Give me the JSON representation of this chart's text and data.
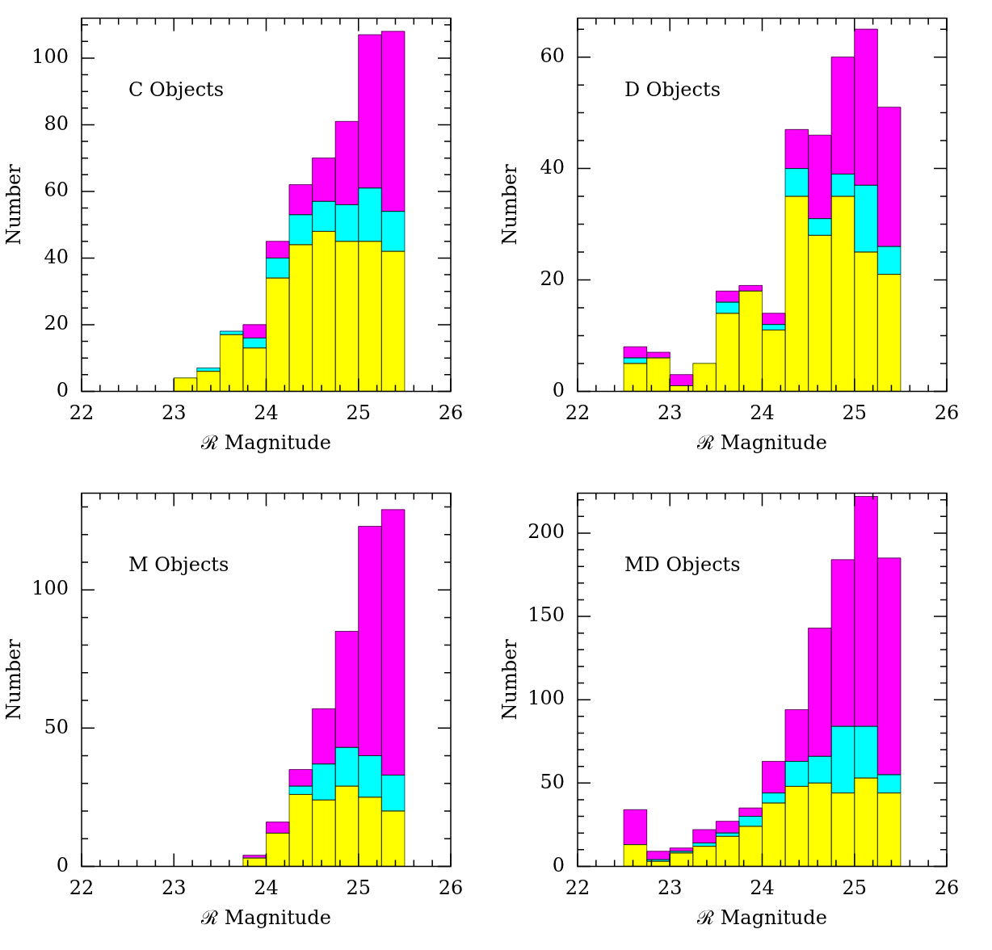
{
  "chart_data": [
    {
      "type": "bar",
      "xlabel": "ℛ Magnitude",
      "ylabel": "Number",
      "annotations": [
        "C Objects"
      ],
      "stacked": true,
      "grid": false,
      "legend": false,
      "x": [
        22.625,
        22.875,
        23.125,
        23.375,
        23.625,
        23.875,
        24.125,
        24.375,
        24.625,
        24.875,
        25.125,
        25.375
      ],
      "series": [
        {
          "color": "#ffff00",
          "values": [
            0,
            0,
            4,
            6,
            17,
            13,
            34,
            44,
            48,
            45,
            45,
            42
          ]
        },
        {
          "color": "#00ffff",
          "values": [
            0,
            0,
            0,
            1,
            1,
            3,
            6,
            9,
            9,
            11,
            16,
            12
          ]
        },
        {
          "color": "#ff00ff",
          "values": [
            0,
            0,
            0,
            0,
            0,
            4,
            5,
            9,
            13,
            25,
            46,
            54
          ]
        }
      ],
      "xlim": [
        22,
        26
      ],
      "xticks": [
        22,
        {
          "value": 22.2,
          "label": null
        },
        {
          "value": 22.4,
          "label": null
        },
        {
          "value": 22.6,
          "label": null
        },
        {
          "value": 22.8,
          "label": null
        },
        23,
        {
          "value": 23.2,
          "label": null
        },
        {
          "value": 23.4,
          "label": null
        },
        {
          "value": 23.6,
          "label": null
        },
        {
          "value": 23.8,
          "label": null
        },
        24,
        {
          "value": 24.2,
          "label": null
        },
        {
          "value": 24.4,
          "label": null
        },
        {
          "value": 24.6,
          "label": null
        },
        {
          "value": 24.8,
          "label": null
        },
        25,
        {
          "value": 25.2,
          "label": null
        },
        {
          "value": 25.4,
          "label": null
        },
        {
          "value": 25.6,
          "label": null
        },
        {
          "value": 25.8,
          "label": null
        },
        26
      ],
      "ylim": [
        0,
        112
      ],
      "yticks": [
        0,
        {
          "value": 5,
          "label": null
        },
        {
          "value": 10,
          "label": null
        },
        {
          "value": 15,
          "label": null
        },
        20,
        {
          "value": 25,
          "label": null
        },
        {
          "value": 30,
          "label": null
        },
        {
          "value": 35,
          "label": null
        },
        40,
        {
          "value": 45,
          "label": null
        },
        {
          "value": 50,
          "label": null
        },
        {
          "value": 55,
          "label": null
        },
        60,
        {
          "value": 65,
          "label": null
        },
        {
          "value": 70,
          "label": null
        },
        {
          "value": 75,
          "label": null
        },
        80,
        {
          "value": 85,
          "label": null
        },
        {
          "value": 90,
          "label": null
        },
        {
          "value": 95,
          "label": null
        },
        100,
        {
          "value": 105,
          "label": null
        },
        {
          "value": 110,
          "label": null
        }
      ]
    },
    {
      "type": "bar",
      "xlabel": "ℛ Magnitude",
      "ylabel": "Number",
      "annotations": [
        "D Objects"
      ],
      "stacked": true,
      "grid": false,
      "legend": false,
      "x": [
        22.625,
        22.875,
        23.125,
        23.375,
        23.625,
        23.875,
        24.125,
        24.375,
        24.625,
        24.875,
        25.125,
        25.375
      ],
      "series": [
        {
          "color": "#ffff00",
          "values": [
            5,
            6,
            1,
            5,
            14,
            18,
            11,
            35,
            28,
            35,
            25,
            21
          ]
        },
        {
          "color": "#00ffff",
          "values": [
            1,
            0,
            0,
            0,
            2,
            0,
            1,
            5,
            3,
            4,
            12,
            5
          ]
        },
        {
          "color": "#ff00ff",
          "values": [
            2,
            1,
            2,
            0,
            2,
            1,
            2,
            7,
            15,
            21,
            28,
            25
          ]
        }
      ],
      "xlim": [
        22,
        26
      ],
      "xticks": [
        22,
        {
          "value": 22.2,
          "label": null
        },
        {
          "value": 22.4,
          "label": null
        },
        {
          "value": 22.6,
          "label": null
        },
        {
          "value": 22.8,
          "label": null
        },
        23,
        {
          "value": 23.2,
          "label": null
        },
        {
          "value": 23.4,
          "label": null
        },
        {
          "value": 23.6,
          "label": null
        },
        {
          "value": 23.8,
          "label": null
        },
        24,
        {
          "value": 24.2,
          "label": null
        },
        {
          "value": 24.4,
          "label": null
        },
        {
          "value": 24.6,
          "label": null
        },
        {
          "value": 24.8,
          "label": null
        },
        25,
        {
          "value": 25.2,
          "label": null
        },
        {
          "value": 25.4,
          "label": null
        },
        {
          "value": 25.6,
          "label": null
        },
        {
          "value": 25.8,
          "label": null
        },
        26
      ],
      "ylim": [
        0,
        67
      ],
      "yticks": [
        0,
        {
          "value": 5,
          "label": null
        },
        {
          "value": 10,
          "label": null
        },
        {
          "value": 15,
          "label": null
        },
        20,
        {
          "value": 25,
          "label": null
        },
        {
          "value": 30,
          "label": null
        },
        {
          "value": 35,
          "label": null
        },
        40,
        {
          "value": 45,
          "label": null
        },
        {
          "value": 50,
          "label": null
        },
        {
          "value": 55,
          "label": null
        },
        60,
        {
          "value": 65,
          "label": null
        }
      ]
    },
    {
      "type": "bar",
      "xlabel": "ℛ Magnitude",
      "ylabel": "Number",
      "annotations": [
        "M Objects"
      ],
      "stacked": true,
      "grid": false,
      "legend": false,
      "x": [
        22.625,
        22.875,
        23.125,
        23.375,
        23.625,
        23.875,
        24.125,
        24.375,
        24.625,
        24.875,
        25.125,
        25.375
      ],
      "series": [
        {
          "color": "#ffff00",
          "values": [
            0,
            0,
            0,
            0,
            0,
            3,
            12,
            26,
            24,
            29,
            25,
            20
          ]
        },
        {
          "color": "#00ffff",
          "values": [
            0,
            0,
            0,
            0,
            0,
            0,
            0,
            3,
            13,
            14,
            15,
            13
          ]
        },
        {
          "color": "#ff00ff",
          "values": [
            0,
            0,
            0,
            0,
            0,
            1,
            4,
            6,
            20,
            42,
            83,
            96
          ]
        }
      ],
      "xlim": [
        22,
        26
      ],
      "xticks": [
        22,
        {
          "value": 22.2,
          "label": null
        },
        {
          "value": 22.4,
          "label": null
        },
        {
          "value": 22.6,
          "label": null
        },
        {
          "value": 22.8,
          "label": null
        },
        23,
        {
          "value": 23.2,
          "label": null
        },
        {
          "value": 23.4,
          "label": null
        },
        {
          "value": 23.6,
          "label": null
        },
        {
          "value": 23.8,
          "label": null
        },
        24,
        {
          "value": 24.2,
          "label": null
        },
        {
          "value": 24.4,
          "label": null
        },
        {
          "value": 24.6,
          "label": null
        },
        {
          "value": 24.8,
          "label": null
        },
        25,
        {
          "value": 25.2,
          "label": null
        },
        {
          "value": 25.4,
          "label": null
        },
        {
          "value": 25.6,
          "label": null
        },
        {
          "value": 25.8,
          "label": null
        },
        26
      ],
      "ylim": [
        0,
        135
      ],
      "yticks": [
        0,
        {
          "value": 10,
          "label": null
        },
        {
          "value": 20,
          "label": null
        },
        {
          "value": 30,
          "label": null
        },
        {
          "value": 40,
          "label": null
        },
        50,
        {
          "value": 60,
          "label": null
        },
        {
          "value": 70,
          "label": null
        },
        {
          "value": 80,
          "label": null
        },
        {
          "value": 90,
          "label": null
        },
        100,
        {
          "value": 110,
          "label": null
        },
        {
          "value": 120,
          "label": null
        },
        {
          "value": 130,
          "label": null
        }
      ]
    },
    {
      "type": "bar",
      "xlabel": "ℛ Magnitude",
      "ylabel": "Number",
      "annotations": [
        "MD Objects"
      ],
      "stacked": true,
      "grid": false,
      "legend": false,
      "x": [
        22.625,
        22.875,
        23.125,
        23.375,
        23.625,
        23.875,
        24.125,
        24.375,
        24.625,
        24.875,
        25.125,
        25.375
      ],
      "series": [
        {
          "color": "#ffff00",
          "values": [
            13,
            3,
            8,
            12,
            18,
            24,
            38,
            48,
            50,
            44,
            53,
            44
          ]
        },
        {
          "color": "#00ffff",
          "values": [
            0,
            1,
            1,
            2,
            2,
            6,
            6,
            15,
            16,
            40,
            31,
            11
          ]
        },
        {
          "color": "#ff00ff",
          "values": [
            21,
            5,
            2,
            8,
            7,
            5,
            19,
            31,
            77,
            100,
            138,
            130
          ]
        }
      ],
      "xlim": [
        22,
        26
      ],
      "xticks": [
        22,
        {
          "value": 22.2,
          "label": null
        },
        {
          "value": 22.4,
          "label": null
        },
        {
          "value": 22.6,
          "label": null
        },
        {
          "value": 22.8,
          "label": null
        },
        23,
        {
          "value": 23.2,
          "label": null
        },
        {
          "value": 23.4,
          "label": null
        },
        {
          "value": 23.6,
          "label": null
        },
        {
          "value": 23.8,
          "label": null
        },
        24,
        {
          "value": 24.2,
          "label": null
        },
        {
          "value": 24.4,
          "label": null
        },
        {
          "value": 24.6,
          "label": null
        },
        {
          "value": 24.8,
          "label": null
        },
        25,
        {
          "value": 25.2,
          "label": null
        },
        {
          "value": 25.4,
          "label": null
        },
        {
          "value": 25.6,
          "label": null
        },
        {
          "value": 25.8,
          "label": null
        },
        26
      ],
      "ylim": [
        0,
        224
      ],
      "yticks": [
        0,
        {
          "value": 10,
          "label": null
        },
        {
          "value": 20,
          "label": null
        },
        {
          "value": 30,
          "label": null
        },
        {
          "value": 40,
          "label": null
        },
        50,
        {
          "value": 60,
          "label": null
        },
        {
          "value": 70,
          "label": null
        },
        {
          "value": 80,
          "label": null
        },
        {
          "value": 90,
          "label": null
        },
        100,
        {
          "value": 110,
          "label": null
        },
        {
          "value": 120,
          "label": null
        },
        {
          "value": 130,
          "label": null
        },
        {
          "value": 140,
          "label": null
        },
        150,
        {
          "value": 160,
          "label": null
        },
        {
          "value": 170,
          "label": null
        },
        {
          "value": 180,
          "label": null
        },
        {
          "value": 190,
          "label": null
        },
        200,
        {
          "value": 210,
          "label": null
        },
        {
          "value": 220,
          "label": null
        }
      ]
    }
  ]
}
